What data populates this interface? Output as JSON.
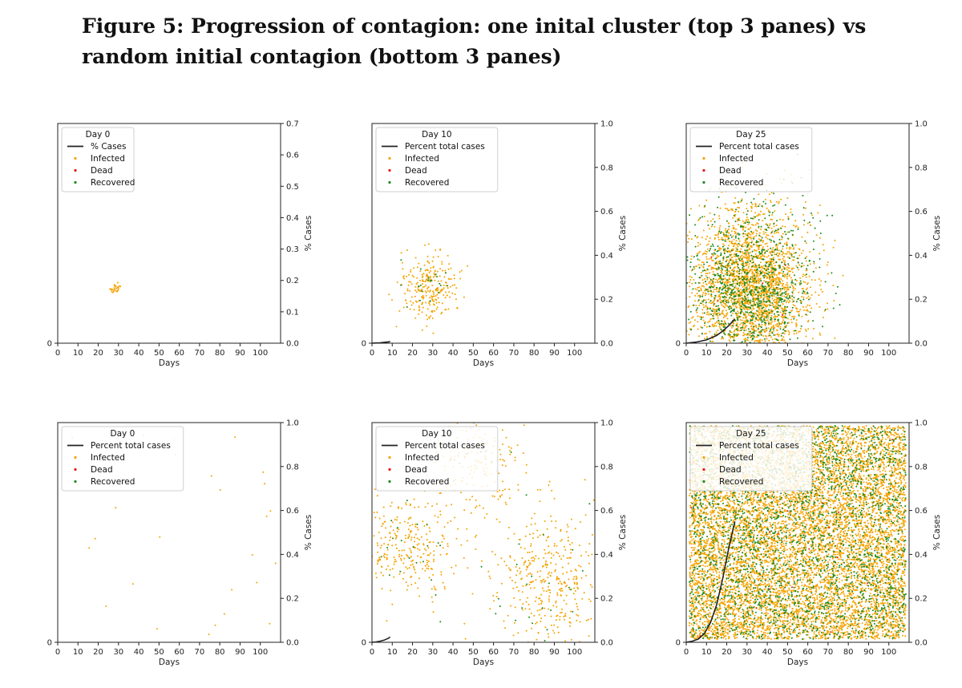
{
  "figure": {
    "caption_line1": "Figure 5: Progression of contagion: one inital cluster (top 3 panes) vs",
    "caption_line2": "random initial contagion (bottom 3 panes)"
  },
  "colors": {
    "infected": "#f5a300",
    "dead": "#e8180c",
    "recovered": "#1f8a1f",
    "line": "#222222"
  },
  "chart_data": [
    {
      "type": "scatter",
      "pane": "top-1",
      "legend_title": "Day 0",
      "series": [
        {
          "name": "% Cases",
          "kind": "line",
          "x": [],
          "y": []
        },
        {
          "name": "Infected",
          "kind": "scatter",
          "density": 30
        },
        {
          "name": "Dead",
          "kind": "scatter",
          "density": 0
        },
        {
          "name": "Recovered",
          "kind": "scatter",
          "density": 0
        }
      ],
      "xlabel": "Days",
      "ylabel": "% Cases",
      "xlim": [
        0,
        110
      ],
      "ylim": [
        0,
        0.7
      ],
      "x_ticks": [
        "0",
        "10",
        "20",
        "30",
        "40",
        "50",
        "60",
        "70",
        "80",
        "90",
        "100"
      ],
      "y_ticks": [
        "0.0",
        "0.1",
        "0.2",
        "0.3",
        "0.4",
        "0.5",
        "0.6",
        "0.7"
      ],
      "left_tick": "0"
    },
    {
      "type": "scatter",
      "pane": "top-2",
      "legend_title": "Day 10",
      "series": [
        {
          "name": "Percent total cases",
          "kind": "line",
          "x": [
            0,
            2,
            4,
            6,
            8,
            9
          ],
          "y": [
            0,
            0.001,
            0.002,
            0.004,
            0.006,
            0.007
          ]
        },
        {
          "name": "Infected",
          "kind": "scatter",
          "density": 260
        },
        {
          "name": "Dead",
          "kind": "scatter",
          "density": 0
        },
        {
          "name": "Recovered",
          "kind": "scatter",
          "density": 20
        }
      ],
      "xlabel": "Days",
      "ylabel": "% Cases",
      "xlim": [
        0,
        110
      ],
      "ylim": [
        0,
        1.0
      ],
      "x_ticks": [
        "0",
        "10",
        "20",
        "30",
        "40",
        "50",
        "60",
        "70",
        "80",
        "90",
        "100"
      ],
      "y_ticks": [
        "0.0",
        "0.2",
        "0.4",
        "0.6",
        "0.8",
        "1.0"
      ],
      "left_tick": "0"
    },
    {
      "type": "scatter",
      "pane": "top-3",
      "legend_title": "Day 25",
      "series": [
        {
          "name": "Percent total cases",
          "kind": "line",
          "x": [
            0,
            5,
            10,
            15,
            18,
            21,
            24
          ],
          "y": [
            0,
            0.005,
            0.015,
            0.035,
            0.055,
            0.08,
            0.11
          ]
        },
        {
          "name": "Infected",
          "kind": "scatter",
          "density": 2600
        },
        {
          "name": "Dead",
          "kind": "scatter",
          "density": 8
        },
        {
          "name": "Recovered",
          "kind": "scatter",
          "density": 1000
        }
      ],
      "xlabel": "Days",
      "ylabel": "% Cases",
      "xlim": [
        0,
        110
      ],
      "ylim": [
        0,
        1.0
      ],
      "x_ticks": [
        "0",
        "10",
        "20",
        "30",
        "40",
        "50",
        "60",
        "70",
        "80",
        "90",
        "100"
      ],
      "y_ticks": [
        "0.0",
        "0.2",
        "0.4",
        "0.6",
        "0.8",
        "1.0"
      ],
      "left_tick": "0"
    },
    {
      "type": "scatter",
      "pane": "bottom-1",
      "legend_title": "Day 0",
      "series": [
        {
          "name": "Percent total cases",
          "kind": "line",
          "x": [],
          "y": []
        },
        {
          "name": "Infected",
          "kind": "scatter",
          "density": 28
        },
        {
          "name": "Dead",
          "kind": "scatter",
          "density": 0
        },
        {
          "name": "Recovered",
          "kind": "scatter",
          "density": 0
        }
      ],
      "xlabel": "Days",
      "ylabel": "% Cases",
      "xlim": [
        0,
        110
      ],
      "ylim": [
        0,
        1.0
      ],
      "x_ticks": [
        "0",
        "10",
        "20",
        "30",
        "40",
        "50",
        "60",
        "70",
        "80",
        "90",
        "100"
      ],
      "y_ticks": [
        "0.0",
        "0.2",
        "0.4",
        "0.6",
        "0.8",
        "1.0"
      ],
      "left_tick": "0"
    },
    {
      "type": "scatter",
      "pane": "bottom-2",
      "legend_title": "Day 10",
      "series": [
        {
          "name": "Percent total cases",
          "kind": "line",
          "x": [
            0,
            2,
            4,
            6,
            8,
            9
          ],
          "y": [
            0,
            0.002,
            0.005,
            0.01,
            0.018,
            0.024
          ]
        },
        {
          "name": "Infected",
          "kind": "scatter",
          "density": 900
        },
        {
          "name": "Dead",
          "kind": "scatter",
          "density": 0
        },
        {
          "name": "Recovered",
          "kind": "scatter",
          "density": 60
        }
      ],
      "xlabel": "Days",
      "ylabel": "% Cases",
      "xlim": [
        0,
        110
      ],
      "ylim": [
        0,
        1.0
      ],
      "x_ticks": [
        "0",
        "10",
        "20",
        "30",
        "40",
        "50",
        "60",
        "70",
        "80",
        "90",
        "100"
      ],
      "y_ticks": [
        "0.0",
        "0.2",
        "0.4",
        "0.6",
        "0.8",
        "1.0"
      ],
      "left_tick": "0"
    },
    {
      "type": "scatter",
      "pane": "bottom-3",
      "legend_title": "Day 25",
      "series": [
        {
          "name": "Percent total cases",
          "kind": "line",
          "x": [
            0,
            3,
            6,
            9,
            12,
            15,
            18,
            21,
            24
          ],
          "y": [
            0,
            0.005,
            0.015,
            0.04,
            0.09,
            0.17,
            0.29,
            0.43,
            0.55
          ]
        },
        {
          "name": "Infected",
          "kind": "scatter",
          "density": 9000
        },
        {
          "name": "Dead",
          "kind": "scatter",
          "density": 20
        },
        {
          "name": "Recovered",
          "kind": "scatter",
          "density": 2600
        }
      ],
      "xlabel": "Days",
      "ylabel": "% Cases",
      "xlim": [
        0,
        110
      ],
      "ylim": [
        0,
        1.0
      ],
      "x_ticks": [
        "0",
        "10",
        "20",
        "30",
        "40",
        "50",
        "60",
        "70",
        "80",
        "90",
        "100"
      ],
      "y_ticks": [
        "0.0",
        "0.2",
        "0.4",
        "0.6",
        "0.8",
        "1.0"
      ],
      "left_tick": "0"
    }
  ]
}
